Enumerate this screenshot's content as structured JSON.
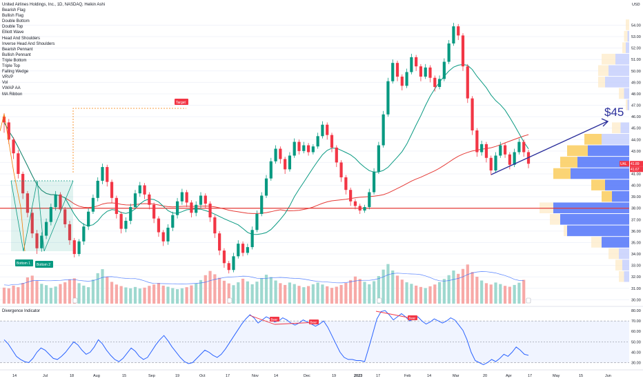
{
  "chart_data": {
    "type": "candlestick",
    "title": "United Airlines Holdings, Inc., 1D, NASDAQ, Heikin Ashi",
    "indicators": [
      "Bearish Flag",
      "Bullish Flag",
      "Double Bottom",
      "Double Top",
      "Elliott Wave",
      "Head And Shoulders",
      "Inverse Head And Shoulders",
      "Bearish Pennant",
      "Bullish Pennant",
      "Triple Bottom",
      "Triple Top",
      "Falling Wedge",
      "VRVP",
      "Vol",
      "VWAP AA",
      "MA Ribbon"
    ],
    "currency": "USD",
    "price_axis": {
      "min": 29.6,
      "max": 56.2,
      "ticks": [
        "54.00",
        "53.00",
        "52.00",
        "51.00",
        "50.00",
        "49.00",
        "48.00",
        "47.00",
        "46.00",
        "45.00",
        "44.00",
        "43.00",
        "42.00",
        "41.00",
        "40.00",
        "39.00",
        "38.00",
        "37.00",
        "36.00",
        "35.00",
        "34.00",
        "33.00",
        "32.00",
        "31.00",
        "30.00"
      ]
    },
    "price_labels": [
      {
        "text": "UAL",
        "value": 41.89,
        "color": "#f23645"
      },
      {
        "text": "41.89",
        "value": 41.89,
        "color": "#f23645"
      },
      {
        "text": "41.67",
        "value": 41.67,
        "color": "#f23645"
      }
    ],
    "x_ticks": [
      "14",
      "Jul",
      "18",
      "Aug",
      "15",
      "Sep",
      "19",
      "Oct",
      "17",
      "Nov",
      "14",
      "Dec",
      "19",
      "2023",
      "17",
      "Feb",
      "14",
      "Mar",
      "20",
      "Apr",
      "17",
      "May",
      "15",
      "Jun"
    ],
    "candles": [
      [
        46,
        45.5,
        44.6,
        46.3
      ],
      [
        45.5,
        44,
        43.6,
        45.8
      ],
      [
        44,
        42.8,
        42.3,
        44.2
      ],
      [
        42.8,
        41,
        40.6,
        43.1
      ],
      [
        41,
        39.3,
        38.8,
        41.2
      ],
      [
        39.3,
        37.6,
        37.2,
        39.5
      ],
      [
        37.6,
        35.8,
        35.4,
        37.9
      ],
      [
        35.8,
        34.5,
        34,
        36.1
      ],
      [
        34.5,
        35.6,
        34.2,
        35.9
      ],
      [
        35.6,
        36.8,
        35.3,
        37.1
      ],
      [
        36.8,
        38.1,
        36.5,
        38.4
      ],
      [
        38.1,
        39.2,
        37.8,
        39.5
      ],
      [
        39.2,
        37.9,
        37.6,
        39.4
      ],
      [
        37.9,
        36.6,
        36.3,
        38.1
      ],
      [
        36.6,
        35.2,
        34.8,
        36.9
      ],
      [
        35.2,
        34,
        33.7,
        35.4
      ],
      [
        34,
        35.1,
        33.8,
        35.3
      ],
      [
        35.1,
        36.4,
        34.8,
        36.7
      ],
      [
        36.4,
        37.7,
        36.1,
        38
      ],
      [
        37.7,
        38.9,
        37.5,
        39.2
      ],
      [
        38.9,
        40.4,
        38.6,
        40.7
      ],
      [
        40.4,
        41.6,
        40.1,
        41.9
      ],
      [
        41.6,
        40.3,
        39.9,
        41.8
      ],
      [
        40.3,
        38.9,
        38.5,
        40.5
      ],
      [
        38.9,
        37.5,
        37.1,
        39.1
      ],
      [
        37.5,
        36.2,
        35.8,
        37.7
      ],
      [
        36.2,
        36.9,
        35.9,
        37.2
      ],
      [
        36.9,
        38.1,
        36.6,
        38.4
      ],
      [
        38.1,
        39.3,
        37.9,
        39.6
      ],
      [
        39.3,
        40,
        39,
        40.3
      ],
      [
        40,
        39.2,
        38.8,
        40.2
      ],
      [
        39.2,
        38.3,
        37.9,
        39.4
      ],
      [
        38.3,
        37.1,
        36.7,
        38.5
      ],
      [
        37.1,
        35.9,
        35.5,
        37.3
      ],
      [
        35.9,
        35.1,
        34.7,
        36.1
      ],
      [
        35.1,
        36.3,
        34.8,
        36.6
      ],
      [
        36.3,
        37.4,
        36,
        37.7
      ],
      [
        37.4,
        38.6,
        37.1,
        38.9
      ],
      [
        38.6,
        39.4,
        38.3,
        39.7
      ],
      [
        39.4,
        38.5,
        38.1,
        39.6
      ],
      [
        38.5,
        37.6,
        37.2,
        38.7
      ],
      [
        37.6,
        38.3,
        37.3,
        38.6
      ],
      [
        38.3,
        39.1,
        38,
        39.4
      ],
      [
        39.1,
        38.4,
        38,
        39.3
      ],
      [
        38.4,
        37.2,
        36.8,
        38.6
      ],
      [
        37.2,
        35.8,
        35.4,
        37.4
      ],
      [
        35.8,
        34.3,
        33.9,
        36
      ],
      [
        34.3,
        33.2,
        32.8,
        34.5
      ],
      [
        33.2,
        32.6,
        32.3,
        33.4
      ],
      [
        32.6,
        33.8,
        32.4,
        34.1
      ],
      [
        33.8,
        34.9,
        33.6,
        35.2
      ],
      [
        34.9,
        34.1,
        33.8,
        35.1
      ],
      [
        34.1,
        34.6,
        33.9,
        34.9
      ],
      [
        34.6,
        36.1,
        34.4,
        36.4
      ],
      [
        36.1,
        37.5,
        35.9,
        37.8
      ],
      [
        37.5,
        39.1,
        37.3,
        39.4
      ],
      [
        39.1,
        40.6,
        38.9,
        40.9
      ],
      [
        40.6,
        42.1,
        40.4,
        42.4
      ],
      [
        42.1,
        43.2,
        41.9,
        43.5
      ],
      [
        43.2,
        42.3,
        41.9,
        43.4
      ],
      [
        42.3,
        41.4,
        41,
        42.5
      ],
      [
        41.4,
        42.6,
        41.2,
        42.9
      ],
      [
        42.6,
        43.8,
        42.4,
        44.1
      ],
      [
        43.8,
        43,
        42.7,
        44
      ],
      [
        43,
        43.5,
        42.8,
        43.8
      ],
      [
        43.5,
        42.9,
        42.6,
        43.7
      ],
      [
        42.9,
        43.4,
        42.7,
        43.6
      ],
      [
        43.4,
        44.3,
        43.2,
        44.6
      ],
      [
        44.3,
        45.3,
        44.1,
        45.6
      ],
      [
        45.3,
        44.4,
        44,
        45.5
      ],
      [
        44.4,
        43.3,
        42.9,
        44.6
      ],
      [
        43.3,
        42,
        41.6,
        43.5
      ],
      [
        42,
        40.7,
        40.3,
        42.2
      ],
      [
        40.7,
        39.6,
        39.2,
        40.9
      ],
      [
        39.6,
        38.6,
        38.2,
        39.8
      ],
      [
        38.6,
        38.2,
        37.9,
        38.8
      ],
      [
        38.2,
        37.8,
        37.5,
        38.4
      ],
      [
        37.8,
        38.1,
        37.6,
        38.3
      ],
      [
        38.1,
        39.4,
        37.9,
        39.7
      ],
      [
        39.4,
        41.2,
        39.2,
        41.5
      ],
      [
        41.2,
        43.5,
        41,
        43.8
      ],
      [
        43.5,
        46.2,
        43.3,
        46.5
      ],
      [
        46.2,
        49.1,
        46,
        49.4
      ],
      [
        49.1,
        50.7,
        48.9,
        51
      ],
      [
        50.7,
        49.5,
        49.1,
        50.9
      ],
      [
        49.5,
        48.7,
        48.3,
        49.7
      ],
      [
        48.7,
        49.9,
        48.5,
        50.2
      ],
      [
        49.9,
        51.2,
        49.7,
        51.5
      ],
      [
        51.2,
        50.4,
        50,
        51.4
      ],
      [
        50.4,
        49.5,
        49.1,
        50.6
      ],
      [
        49.5,
        50.3,
        49.3,
        50.6
      ],
      [
        50.3,
        49.4,
        49,
        50.5
      ],
      [
        49.4,
        48.6,
        48.2,
        49.6
      ],
      [
        48.6,
        49.3,
        48.4,
        49.6
      ],
      [
        49.3,
        50.8,
        49.1,
        51.1
      ],
      [
        50.8,
        52.4,
        50.6,
        52.7
      ],
      [
        52.4,
        53.9,
        52.2,
        54.2
      ],
      [
        53.9,
        53.1,
        52.7,
        54.1
      ],
      [
        53.1,
        50.4,
        50,
        53.3
      ],
      [
        50.4,
        47.6,
        47.2,
        50.6
      ],
      [
        47.6,
        44.8,
        44.4,
        47.8
      ],
      [
        44.8,
        42.9,
        42.5,
        45
      ],
      [
        42.9,
        43.6,
        42.6,
        43.9
      ],
      [
        43.6,
        42.4,
        42,
        43.8
      ],
      [
        42.4,
        41.3,
        40.9,
        42.6
      ],
      [
        41.3,
        42.6,
        41.1,
        42.9
      ],
      [
        42.6,
        43.5,
        42.4,
        43.8
      ],
      [
        43.5,
        42.7,
        42.4,
        43.7
      ],
      [
        42.7,
        41.8,
        41.4,
        42.9
      ],
      [
        41.8,
        42.9,
        41.6,
        43.2
      ],
      [
        42.9,
        43.8,
        42.7,
        44.1
      ],
      [
        43.8,
        42.9,
        42.5,
        44
      ],
      [
        42.9,
        41.89,
        41.5,
        43.1
      ]
    ],
    "volume": [
      7.2,
      6.9,
      8.1,
      7.4,
      9.3,
      11.8,
      12.6,
      10.2,
      8.9,
      8.3,
      7.1,
      7.7,
      8.8,
      9.6,
      10.9,
      11.4,
      9.2,
      8.1,
      7.4,
      10.8,
      13.7,
      15.5,
      12.1,
      9.8,
      8.6,
      7.9,
      7.3,
      6.9,
      7.5,
      6.8,
      7.2,
      8,
      8.6,
      9.3,
      8.1,
      7.6,
      7,
      6.5,
      6.9,
      7.4,
      8.2,
      9.1,
      10.6,
      12.8,
      14.7,
      13.2,
      11.6,
      10.3,
      9.1,
      8.3,
      9.6,
      11.2,
      10,
      8.7,
      9.9,
      11.5,
      13,
      11.9,
      10.4,
      9.2,
      8.4,
      9.5,
      8.8,
      8,
      7.4,
      7.9,
      8.7,
      9.5,
      8.6,
      7.8,
      7.1,
      7.6,
      8.4,
      9.3,
      10.6,
      12.2,
      11.1,
      9.8,
      8.7,
      10.1,
      12.4,
      15.3,
      17.8,
      14.9,
      12.6,
      10.8,
      9.6,
      8.9,
      8.1,
      7.5,
      7,
      7.8,
      8.6,
      9.7,
      11.1,
      12.8,
      14.9,
      13.4,
      15.6,
      17.6,
      14.2,
      12.1,
      10.4,
      9.2,
      8.6,
      9.5,
      8.8,
      8,
      7.6,
      8.4,
      9.4,
      10.7
    ],
    "vrvp": [
      [
        54,
        2,
        0
      ],
      [
        53,
        3,
        1
      ],
      [
        52,
        4,
        2
      ],
      [
        51,
        16,
        8
      ],
      [
        50,
        18,
        12
      ],
      [
        49,
        18,
        14
      ],
      [
        48,
        6,
        3
      ],
      [
        47,
        2,
        1
      ],
      [
        45,
        10,
        5
      ],
      [
        44,
        26,
        16
      ],
      [
        43,
        36,
        24
      ],
      [
        42,
        40,
        30
      ],
      [
        41,
        44,
        34
      ],
      [
        40,
        22,
        14
      ],
      [
        39,
        16,
        10
      ],
      [
        38,
        52,
        44
      ],
      [
        37,
        46,
        40
      ],
      [
        36,
        38,
        36
      ],
      [
        35,
        22,
        16
      ],
      [
        34,
        12,
        6
      ],
      [
        33,
        8,
        4
      ],
      [
        32,
        6,
        3
      ]
    ],
    "annotations": [
      {
        "text": "Target",
        "color": "#f23645"
      },
      {
        "text": "Bottom 1",
        "color": "#089981"
      },
      {
        "text": "Bottom 2",
        "color": "#089981"
      },
      {
        "text": "$45",
        "color": "#2a2e9b"
      }
    ],
    "divergence": {
      "title": "Divergence Indicator",
      "ylim": [
        27,
        82
      ],
      "ticks": [
        "80.00",
        "70.00",
        "60.00",
        "50.00",
        "40.00",
        "30.00"
      ],
      "bands": [
        70,
        50,
        30
      ],
      "values": [
        52,
        48,
        42,
        36,
        33,
        31,
        30,
        34,
        40,
        44,
        42,
        38,
        34,
        33,
        36,
        40,
        45,
        50,
        47,
        42,
        38,
        40,
        45,
        52,
        48,
        42,
        37,
        33,
        31,
        34,
        39,
        44,
        41,
        36,
        33,
        35,
        41,
        47,
        52,
        56,
        51,
        45,
        40,
        35,
        31,
        29,
        30,
        34,
        38,
        42,
        40,
        37,
        35,
        38,
        43,
        49,
        55,
        61,
        67,
        72,
        76,
        73,
        68,
        71,
        74,
        72,
        69,
        70,
        73,
        71,
        68,
        66,
        68,
        71,
        69,
        67,
        65,
        67,
        70,
        64,
        56,
        48,
        40,
        35,
        33,
        33,
        32,
        32,
        31,
        44,
        58,
        72,
        79,
        80,
        76,
        71,
        74,
        77,
        74,
        70,
        72,
        74,
        70,
        67,
        69,
        72,
        70,
        68,
        70,
        73,
        71,
        66,
        61,
        52,
        40,
        32,
        30,
        28,
        30,
        33,
        31,
        34,
        38,
        36,
        40,
        45,
        42,
        38,
        37
      ],
      "labels": [
        "Bear",
        "Bear",
        "Bear"
      ]
    }
  }
}
